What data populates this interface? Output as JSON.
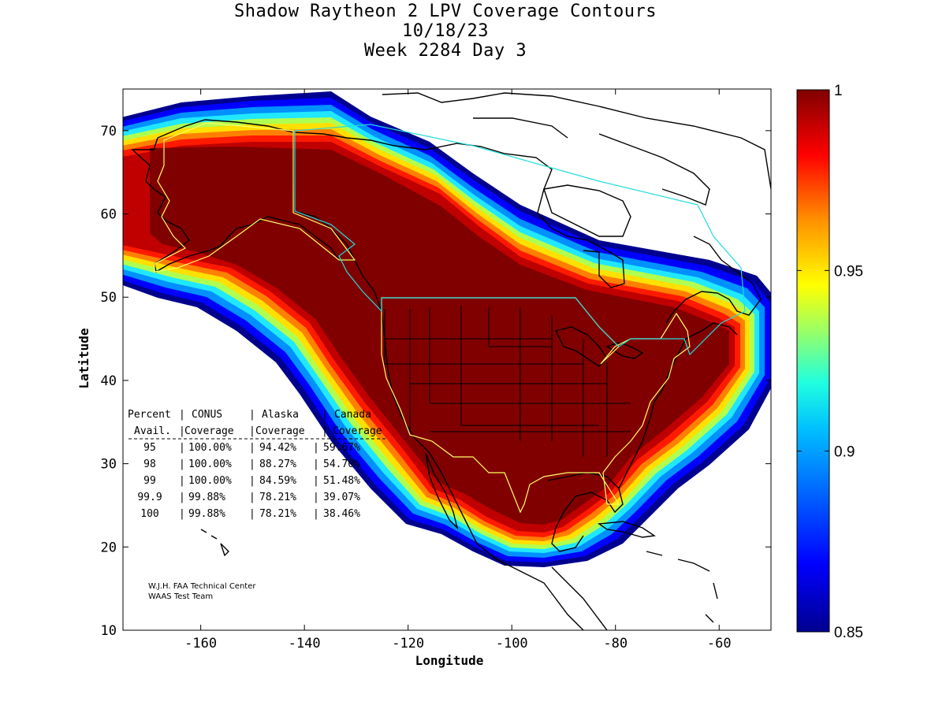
{
  "title": {
    "line1": "Shadow Raytheon 2 LPV Coverage Contours",
    "line2": "10/18/23",
    "line3": "Week 2284 Day 3"
  },
  "axes": {
    "xlabel": "Longitude",
    "ylabel": "Latitude",
    "xlim": [
      -175,
      -50
    ],
    "ylim": [
      10,
      75
    ],
    "xticks": [
      -160,
      -140,
      -120,
      -100,
      -80,
      -60
    ],
    "yticks": [
      10,
      20,
      30,
      40,
      50,
      60,
      70
    ]
  },
  "colorbar": {
    "min": 0.85,
    "max": 1,
    "ticks": [
      "1",
      "0.95",
      "0.9",
      "0.85"
    ],
    "tick_values": [
      1,
      0.95,
      0.9,
      0.85
    ],
    "colormap": [
      "#00008f",
      "#0000ff",
      "#0080ff",
      "#00ffff",
      "#80ff80",
      "#ffff00",
      "#ff8000",
      "#ff0000",
      "#800000"
    ]
  },
  "table": {
    "header1": [
      "Percent",
      "CONUS",
      "Alaska",
      "Canada"
    ],
    "header2": [
      "Avail.",
      "Coverage",
      "Coverage",
      "Coverage"
    ],
    "rows": [
      {
        "avail": "95",
        "conus": "100.00%",
        "alaska": "94.42%",
        "canada": "59.67%"
      },
      {
        "avail": "98",
        "conus": "100.00%",
        "alaska": "88.27%",
        "canada": "54.70%"
      },
      {
        "avail": "99",
        "conus": "100.00%",
        "alaska": "84.59%",
        "canada": "51.48%"
      },
      {
        "avail": "99.9",
        "conus": "99.88%",
        "alaska": "78.21%",
        "canada": "39.07%"
      },
      {
        "avail": "100",
        "conus": "99.88%",
        "alaska": "78.21%",
        "canada": "38.46%"
      }
    ]
  },
  "credit": {
    "line1": "W.J.H. FAA Technical Center",
    "line2": "WAAS Test Team"
  },
  "colors": {
    "core": "#800000",
    "band_red": "#c00000",
    "coastline": "#000000",
    "service_volume_conus": "#ffff66",
    "service_volume_canada": "#22dddd"
  }
}
